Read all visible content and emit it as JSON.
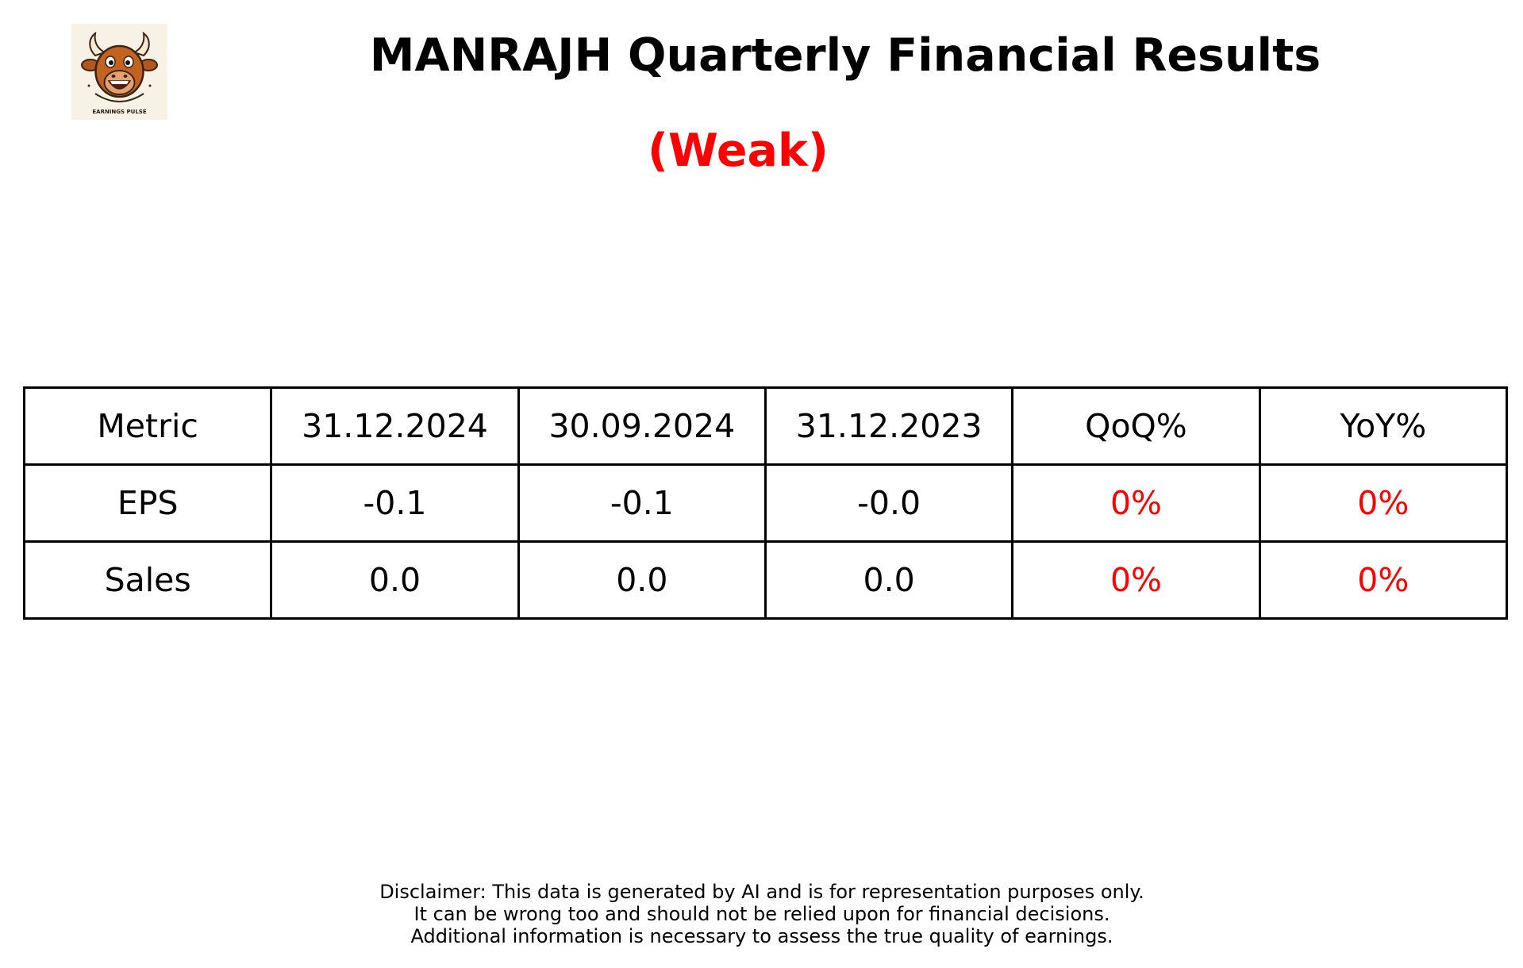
{
  "header": {
    "title": "MANRAJH Quarterly Financial Results",
    "rating": "(Weak)",
    "logo_text": "EARNINGS PULSE",
    "logo_icon": "bull-mascot-icon"
  },
  "colors": {
    "negative": "#ff0000",
    "logo_background": "#f8f1e6"
  },
  "table": {
    "headers": [
      "Metric",
      "31.12.2024",
      "30.09.2024",
      "31.12.2023",
      "QoQ%",
      "YoY%"
    ],
    "rows": [
      [
        "EPS",
        "-0.1",
        "-0.1",
        "-0.0",
        "0%",
        "0%"
      ],
      [
        "Sales",
        "0.0",
        "0.0",
        "0.0",
        "0%",
        "0%"
      ]
    ]
  },
  "disclaimer": {
    "lines": [
      "Disclaimer: This data is generated by AI and is for representation purposes only.",
      "It can be wrong too and should not be relied upon for financial decisions.",
      "Additional information is necessary to assess the true quality of earnings."
    ]
  }
}
